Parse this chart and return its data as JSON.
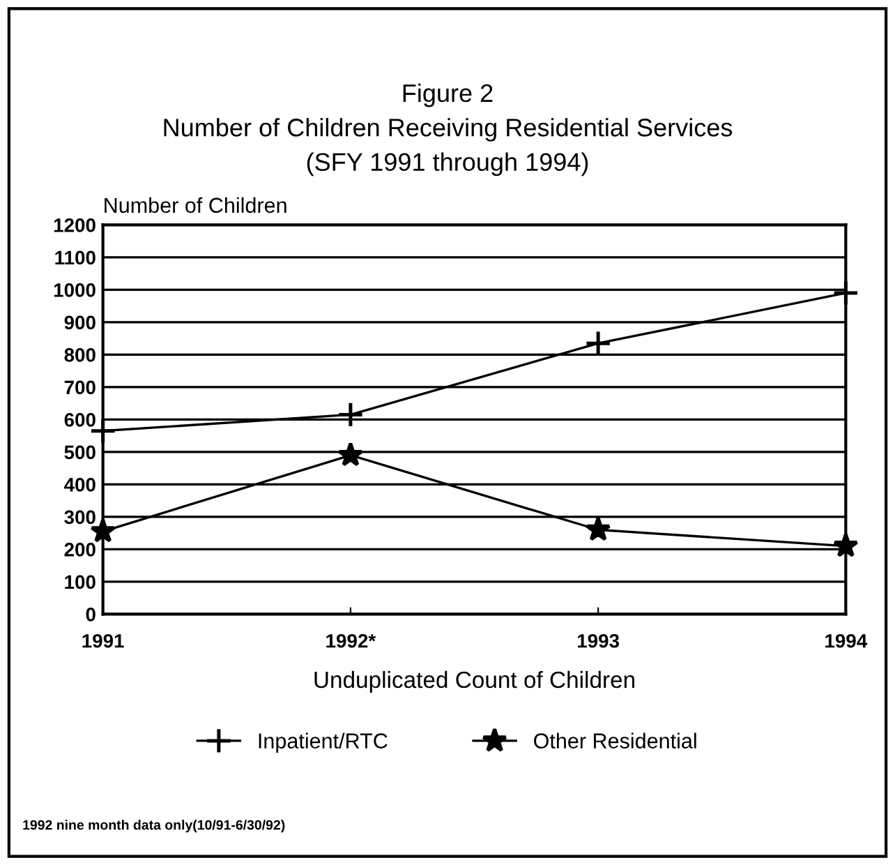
{
  "chart_data": {
    "type": "line",
    "title": "Figure 2\nNumber of Children Receiving Residential Services\n(SFY 1991 through 1994)",
    "ylabel": "Number of Children",
    "xlabel": "Unduplicated Count of Children",
    "categories": [
      "1991",
      "1992*",
      "1993",
      "1994"
    ],
    "series": [
      {
        "name": "Inpatient/RTC",
        "color": "#000000",
        "marker": "cross",
        "values": [
          565,
          615,
          835,
          990
        ]
      },
      {
        "name": "Other Residential",
        "color": "#000000",
        "marker": "star",
        "values": [
          255,
          490,
          260,
          210
        ]
      }
    ],
    "ylim": [
      0,
      1200
    ],
    "yticks": [
      0,
      100,
      200,
      300,
      400,
      500,
      600,
      700,
      800,
      900,
      1000,
      1100,
      1200
    ],
    "grid": "y",
    "legend": "bottom",
    "line_style": "solid",
    "annotations": [
      "1992 nine month data only(10/91-6/30/92)"
    ]
  }
}
